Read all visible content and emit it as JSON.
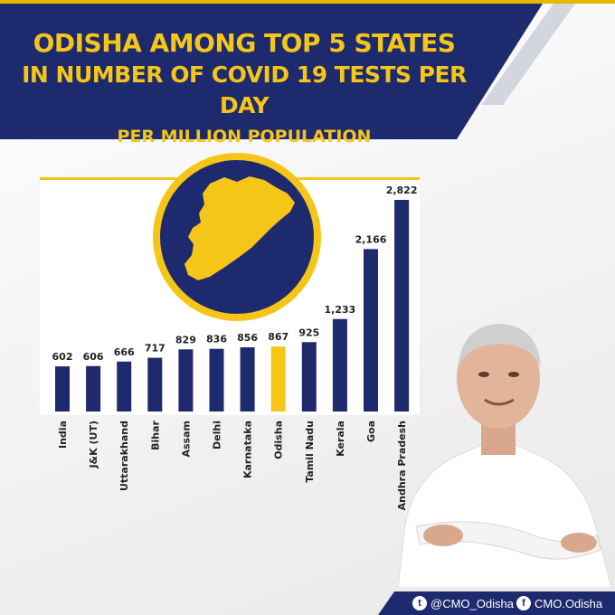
{
  "header": {
    "line1": "ODISHA AMONG TOP 5 STATES",
    "line2": "IN NUMBER OF COVID 19 TESTS PER DAY",
    "line3": "PER MILLION POPULATION"
  },
  "colors": {
    "navy": "#1e2a6e",
    "gold": "#f5c518",
    "highlight": "#f5c518"
  },
  "chart_data": {
    "type": "bar",
    "categories": [
      "India",
      "J&K (UT)",
      "Uttarakhand",
      "Bihar",
      "Assam",
      "Delhi",
      "Karnataka",
      "Odisha",
      "Tamil Nadu",
      "Kerala",
      "Goa",
      "Andhra Pradesh"
    ],
    "values": [
      602,
      606,
      666,
      717,
      829,
      836,
      856,
      867,
      925,
      1233,
      2166,
      2822
    ],
    "value_labels": [
      "602",
      "606",
      "666",
      "717",
      "829",
      "836",
      "856",
      "867",
      "925",
      "1,233",
      "2,166",
      "2,822"
    ],
    "highlight": "Odisha",
    "ylim": [
      0,
      2822
    ],
    "grid": false,
    "legend": "none"
  },
  "map_emblem": {
    "icon": "odisha-map-icon"
  },
  "photo": {
    "icon": "person-photo"
  },
  "footer": {
    "twitter_icon": "twitter-icon",
    "twitter_handle": "@CMO_Odisha",
    "facebook_icon": "facebook-icon",
    "facebook_handle": "CMO.Odisha"
  }
}
